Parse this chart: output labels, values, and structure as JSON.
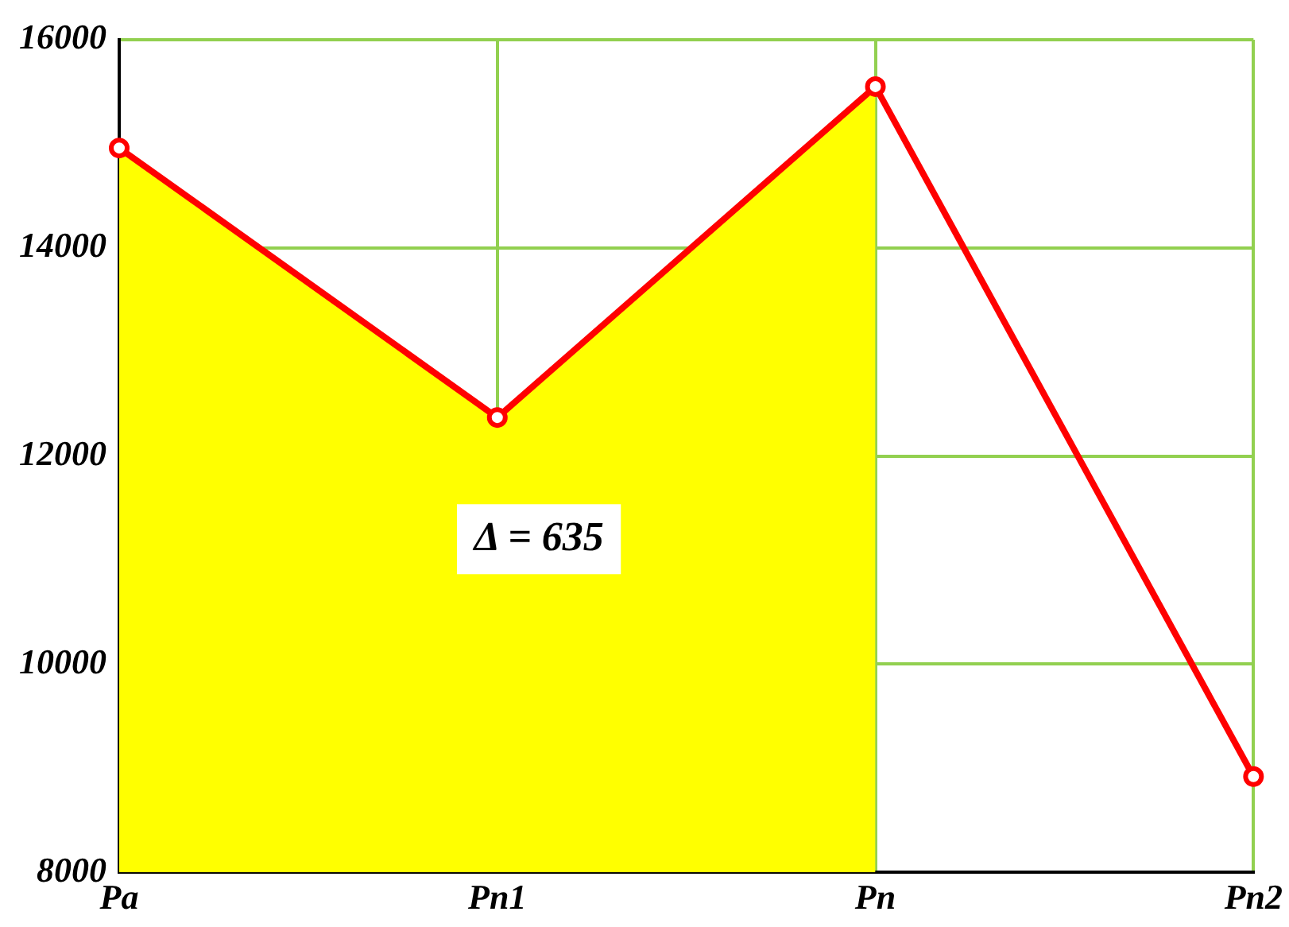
{
  "chart_data": {
    "type": "line",
    "categories": [
      "Pa",
      "Pn1",
      "Pn",
      "Pn2"
    ],
    "series": [
      {
        "type": "area",
        "color": "#ffff00",
        "values": [
          14960,
          12370,
          15550,
          null
        ]
      },
      {
        "type": "line",
        "color": "#ff0000",
        "marker": "circle",
        "values": [
          14960,
          12370,
          15550,
          8920
        ]
      }
    ],
    "ylim": [
      8000,
      16000
    ],
    "yticks": [
      8000,
      10000,
      12000,
      14000,
      16000
    ],
    "grid": true,
    "line_style": "solid",
    "legend": false,
    "annotations": [
      "Δ = 635"
    ]
  }
}
